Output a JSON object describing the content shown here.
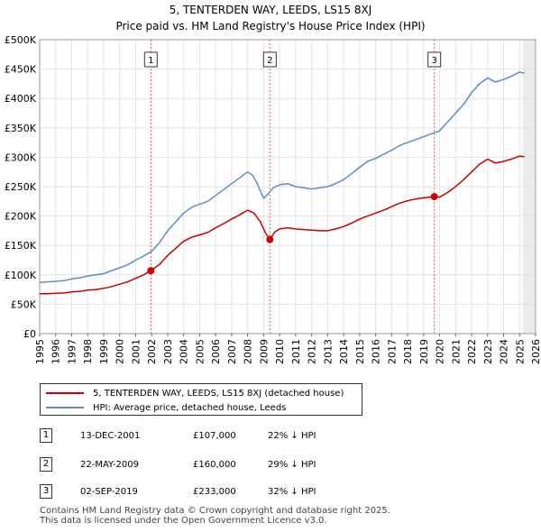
{
  "title_line1": "5, TENTERDEN WAY, LEEDS, LS15 8XJ",
  "title_line2": "Price paid vs. HM Land Registry's House Price Index (HPI)",
  "colors": {
    "property": "#cc0000",
    "hpi": "#5b8ec6",
    "marker_line": "#e06666",
    "future_shade": "#dddddd"
  },
  "legend": {
    "property_label": "5, TENTERDEN WAY, LEEDS, LS15 8XJ (detached house)",
    "hpi_label": "HPI: Average price, detached house, Leeds"
  },
  "transactions": [
    {
      "id": "1",
      "date": "13-DEC-2001",
      "price": "£107,000",
      "diff": "22% ↓ HPI"
    },
    {
      "id": "2",
      "date": "22-MAY-2009",
      "price": "£160,000",
      "diff": "29% ↓ HPI"
    },
    {
      "id": "3",
      "date": "02-SEP-2019",
      "price": "£233,000",
      "diff": "32% ↓ HPI"
    }
  ],
  "footer_line1": "Contains HM Land Registry data © Crown copyright and database right 2025.",
  "footer_line2": "This data is licensed under the Open Government Licence v3.0.",
  "chart_data": {
    "type": "line",
    "title": "5, TENTERDEN WAY, LEEDS, LS15 8XJ — Price paid vs. HM Land Registry's House Price Index (HPI)",
    "xlabel": "",
    "ylabel": "",
    "xlim": [
      1995,
      2026
    ],
    "ylim": [
      0,
      500000
    ],
    "y_ticks": [
      0,
      50000,
      100000,
      150000,
      200000,
      250000,
      300000,
      350000,
      400000,
      450000,
      500000
    ],
    "y_tick_labels": [
      "£0",
      "£50K",
      "£100K",
      "£150K",
      "£200K",
      "£250K",
      "£300K",
      "£350K",
      "£400K",
      "£450K",
      "£500K"
    ],
    "x_ticks": [
      1995,
      1996,
      1997,
      1998,
      1999,
      2000,
      2001,
      2002,
      2003,
      2004,
      2005,
      2006,
      2007,
      2008,
      2009,
      2010,
      2011,
      2012,
      2013,
      2014,
      2015,
      2016,
      2017,
      2018,
      2019,
      2020,
      2021,
      2022,
      2023,
      2024,
      2025,
      2026
    ],
    "grid": true,
    "forecast_start": 2025.2,
    "series": [
      {
        "name": "HPI: Average price, detached house, Leeds",
        "x": [
          1995,
          1995.5,
          1996,
          1996.5,
          1997,
          1997.5,
          1998,
          1998.5,
          1999,
          1999.5,
          2000,
          2000.5,
          2001,
          2001.5,
          2002,
          2002.5,
          2003,
          2003.5,
          2004,
          2004.5,
          2005,
          2005.5,
          2006,
          2006.5,
          2007,
          2007.5,
          2008,
          2008.3,
          2008.6,
          2009,
          2009.3,
          2009.6,
          2010,
          2010.5,
          2011,
          2011.5,
          2012,
          2012.5,
          2013,
          2013.5,
          2014,
          2014.5,
          2015,
          2015.5,
          2016,
          2016.5,
          2017,
          2017.5,
          2018,
          2018.5,
          2019,
          2019.5,
          2020,
          2020.5,
          2021,
          2021.5,
          2022,
          2022.5,
          2023,
          2023.5,
          2024,
          2024.5,
          2025,
          2025.3
        ],
        "y": [
          87000,
          88000,
          89000,
          90000,
          93000,
          95000,
          98000,
          100000,
          102000,
          107000,
          112000,
          117000,
          125000,
          132000,
          140000,
          155000,
          175000,
          190000,
          205000,
          215000,
          220000,
          225000,
          235000,
          245000,
          255000,
          265000,
          275000,
          270000,
          255000,
          230000,
          238000,
          248000,
          253000,
          255000,
          250000,
          248000,
          246000,
          248000,
          250000,
          255000,
          262000,
          272000,
          283000,
          293000,
          298000,
          305000,
          312000,
          320000,
          325000,
          330000,
          335000,
          340000,
          345000,
          360000,
          375000,
          390000,
          410000,
          425000,
          435000,
          428000,
          432000,
          438000,
          445000,
          443000
        ]
      },
      {
        "name": "5, TENTERDEN WAY, LEEDS, LS15 8XJ (detached house)",
        "x": [
          1995,
          1995.5,
          1996,
          1996.5,
          1997,
          1997.5,
          1998,
          1998.5,
          1999,
          1999.5,
          2000,
          2000.5,
          2001,
          2001.5,
          2001.95,
          2002.5,
          2003,
          2003.5,
          2004,
          2004.5,
          2005,
          2005.5,
          2006,
          2006.5,
          2007,
          2007.5,
          2008,
          2008.4,
          2008.8,
          2009.1,
          2009.39,
          2009.7,
          2010,
          2010.5,
          2011,
          2011.5,
          2012,
          2012.5,
          2013,
          2013.5,
          2014,
          2014.5,
          2015,
          2015.5,
          2016,
          2016.5,
          2017,
          2017.5,
          2018,
          2018.5,
          2019,
          2019.67,
          2020,
          2020.5,
          2021,
          2021.5,
          2022,
          2022.5,
          2023,
          2023.5,
          2024,
          2024.5,
          2025,
          2025.3
        ],
        "y": [
          68000,
          68000,
          68500,
          69000,
          71000,
          72000,
          74000,
          75000,
          77000,
          80000,
          84000,
          88000,
          94000,
          100000,
          107000,
          118000,
          133000,
          145000,
          157000,
          164000,
          168000,
          172000,
          180000,
          187000,
          195000,
          202000,
          210000,
          205000,
          190000,
          172000,
          160000,
          173000,
          178000,
          180000,
          178000,
          177000,
          176000,
          175000,
          175000,
          178000,
          182000,
          188000,
          195000,
          200000,
          205000,
          210000,
          216000,
          222000,
          226000,
          229000,
          231000,
          233000,
          232000,
          240000,
          250000,
          262000,
          275000,
          288000,
          297000,
          290000,
          293000,
          297000,
          302000,
          301000
        ]
      }
    ],
    "markers": [
      {
        "label": "1",
        "x": 2001.95,
        "y": 107000
      },
      {
        "label": "2",
        "x": 2009.39,
        "y": 160000
      },
      {
        "label": "3",
        "x": 2019.67,
        "y": 233000
      }
    ],
    "legend_position": "bottom-left"
  }
}
